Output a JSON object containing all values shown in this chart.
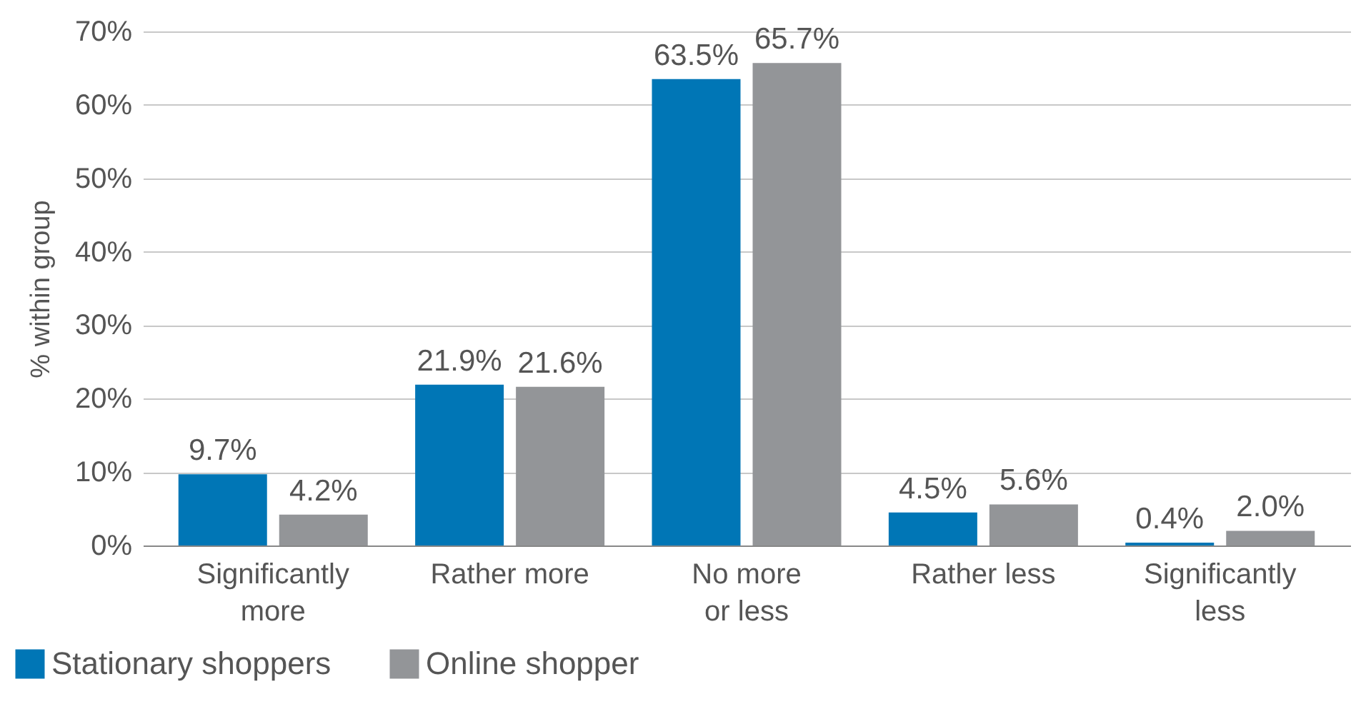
{
  "chart_data": {
    "type": "bar",
    "ylabel": "% within group",
    "categories": [
      "Significantly more",
      "Rather more",
      "No more or less",
      "Rather less",
      "Significantly less"
    ],
    "series": [
      {
        "name": "Stationary shoppers",
        "color": "#0076b6",
        "values": [
          9.7,
          21.9,
          63.5,
          4.5,
          0.4
        ],
        "value_labels": [
          "9.7%",
          "21.9%",
          "63.5%",
          "4.5%",
          "0.4%"
        ]
      },
      {
        "name": "Online shopper",
        "color": "#939598",
        "values": [
          4.2,
          21.6,
          65.7,
          5.6,
          2.0
        ],
        "value_labels": [
          "4.2%",
          "21.6%",
          "65.7%",
          "5.6%",
          "2.0%"
        ]
      }
    ],
    "ylim": [
      0,
      70
    ],
    "yticks": [
      {
        "value": 0,
        "label": "0%"
      },
      {
        "value": 10,
        "label": "10%"
      },
      {
        "value": 20,
        "label": "20%"
      },
      {
        "value": 30,
        "label": "30%"
      },
      {
        "value": 40,
        "label": "40%"
      },
      {
        "value": 50,
        "label": "50%"
      },
      {
        "value": 60,
        "label": "60%"
      },
      {
        "value": 70,
        "label": "70%"
      }
    ],
    "grid": "y",
    "legend": "bottom left"
  }
}
